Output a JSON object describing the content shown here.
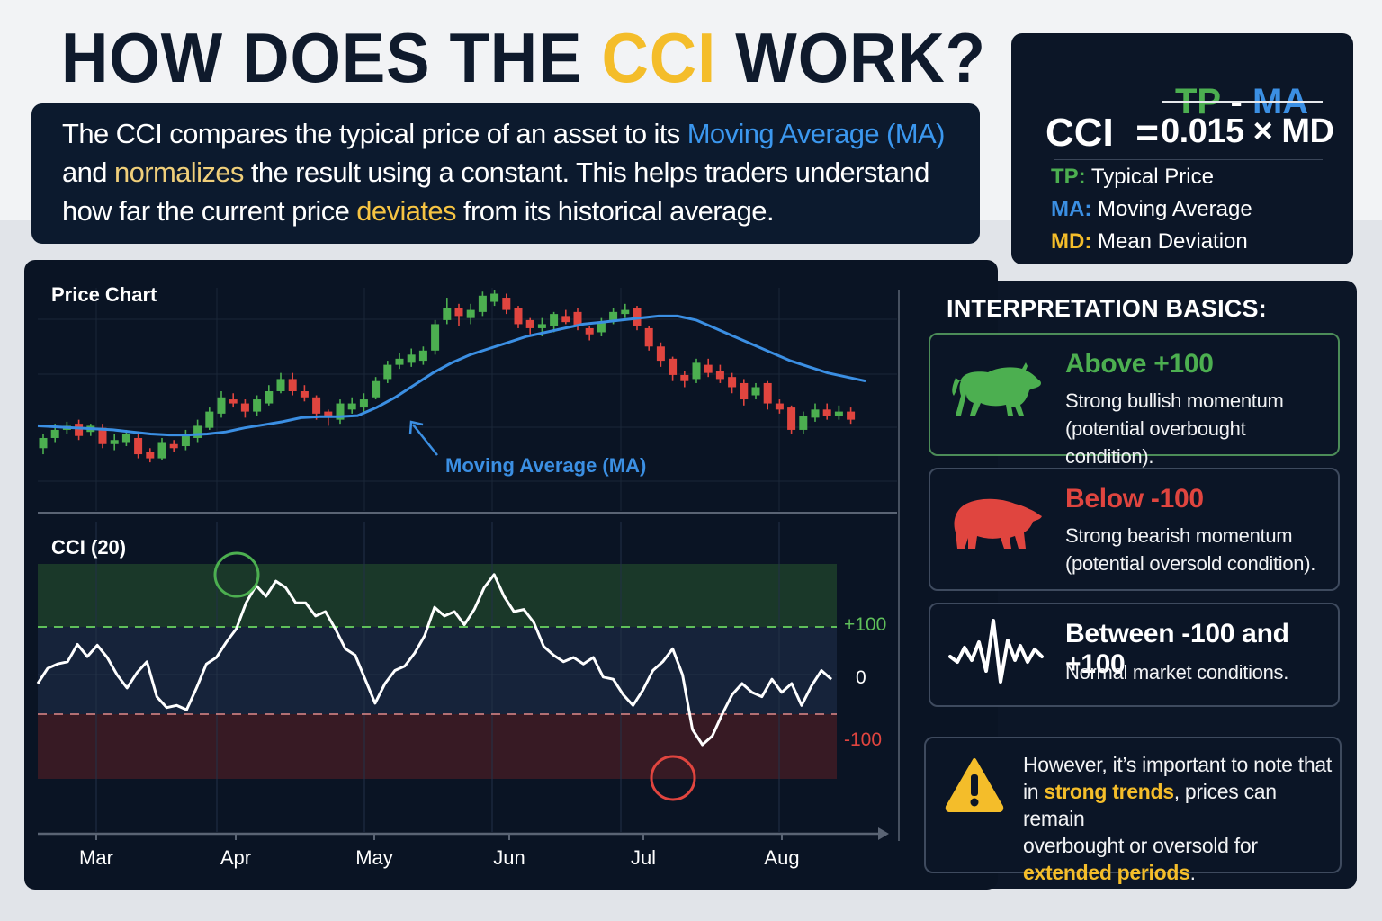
{
  "header": {
    "title_pre": "HOW DOES THE ",
    "title_accent": "CCI",
    "title_post": " WORK?"
  },
  "intro": {
    "line1_pre": "The CCI compares the typical price of an asset to its ",
    "line1_hl": "Moving Average (MA)",
    "line2_pre": "and ",
    "line2_hl": "normalizes",
    "line2_post": " the result using a constant. This helps traders understand",
    "line3_pre": "how far the current price ",
    "line3_hl": "deviates",
    "line3_post": " from its historical average."
  },
  "formula": {
    "lhs": "CCI  =",
    "num_tp": "TP",
    "num_minus": " - ",
    "num_ma": "MA",
    "denominator": "0.015 × MD",
    "legend": [
      {
        "key": "TP:",
        "label": " Typical Price",
        "color": "#4caf50"
      },
      {
        "key": "MA:",
        "label": " Moving Average",
        "color": "#3b8fe3"
      },
      {
        "key": "MD:",
        "label": " Mean Deviation",
        "color": "#f4bd2a"
      }
    ]
  },
  "interpretation": {
    "title": "INTERPRETATION BASICS:",
    "cards": [
      {
        "heading": "Above +100",
        "line1": "Strong bullish momentum",
        "line2": "(potential overbought condition).",
        "icon": "bull-icon"
      },
      {
        "heading": "Below -100",
        "line1": "Strong bearish momentum",
        "line2": "(potential oversold condition).",
        "icon": "bear-icon"
      },
      {
        "heading": "Between -100 and +100",
        "line1": "Normal market conditions.",
        "icon": "wave-icon"
      }
    ],
    "warning": {
      "l1": "However, it’s important to note that",
      "l2_pre": "in ",
      "l2_hl": "strong trends",
      "l2_post": ", prices can remain",
      "l3": "overbought or oversold for",
      "l4_hl": "extended periods",
      "l4_post": "."
    }
  },
  "colors": {
    "bull": "#4caf50",
    "bear": "#e0453f",
    "ma": "#3b8fe3",
    "accent": "#f4bd2a",
    "panel": "#0a1424"
  },
  "chart_data": [
    {
      "type": "candlestick",
      "title": "Price Chart",
      "xlabel": "",
      "ylabel": "",
      "x_tick_labels": [
        "Mar",
        "Apr",
        "May",
        "Jun",
        "Jul",
        "Aug"
      ],
      "grid": true,
      "note": "Values are relative price levels (0-100 scale) estimated from pixel positions; higher = higher price.",
      "candles": [
        {
          "o": 22,
          "c": 27,
          "h": 29,
          "l": 19
        },
        {
          "o": 27,
          "c": 31,
          "h": 34,
          "l": 25
        },
        {
          "o": 31,
          "c": 33,
          "h": 35,
          "l": 29
        },
        {
          "o": 34,
          "c": 28,
          "h": 36,
          "l": 26
        },
        {
          "o": 30,
          "c": 33,
          "h": 34,
          "l": 28
        },
        {
          "o": 32,
          "c": 24,
          "h": 34,
          "l": 22
        },
        {
          "o": 24,
          "c": 26,
          "h": 29,
          "l": 21
        },
        {
          "o": 25,
          "c": 29,
          "h": 31,
          "l": 23
        },
        {
          "o": 27,
          "c": 19,
          "h": 29,
          "l": 17
        },
        {
          "o": 20,
          "c": 17,
          "h": 22,
          "l": 15
        },
        {
          "o": 17,
          "c": 25,
          "h": 27,
          "l": 16
        },
        {
          "o": 24,
          "c": 22,
          "h": 26,
          "l": 20
        },
        {
          "o": 23,
          "c": 28,
          "h": 31,
          "l": 21
        },
        {
          "o": 27,
          "c": 33,
          "h": 36,
          "l": 25
        },
        {
          "o": 32,
          "c": 40,
          "h": 42,
          "l": 31
        },
        {
          "o": 39,
          "c": 47,
          "h": 50,
          "l": 37
        },
        {
          "o": 46,
          "c": 44,
          "h": 49,
          "l": 42
        },
        {
          "o": 44,
          "c": 40,
          "h": 46,
          "l": 37
        },
        {
          "o": 40,
          "c": 46,
          "h": 48,
          "l": 38
        },
        {
          "o": 44,
          "c": 50,
          "h": 53,
          "l": 43
        },
        {
          "o": 50,
          "c": 56,
          "h": 59,
          "l": 49
        },
        {
          "o": 56,
          "c": 50,
          "h": 59,
          "l": 48
        },
        {
          "o": 50,
          "c": 47,
          "h": 53,
          "l": 45
        },
        {
          "o": 47,
          "c": 39,
          "h": 48,
          "l": 36
        },
        {
          "o": 40,
          "c": 37,
          "h": 41,
          "l": 33
        },
        {
          "o": 36,
          "c": 44,
          "h": 46,
          "l": 34
        },
        {
          "o": 41,
          "c": 44,
          "h": 47,
          "l": 39
        },
        {
          "o": 42,
          "c": 46,
          "h": 49,
          "l": 40
        },
        {
          "o": 47,
          "c": 55,
          "h": 57,
          "l": 46
        },
        {
          "o": 56,
          "c": 63,
          "h": 65,
          "l": 54
        },
        {
          "o": 63,
          "c": 66,
          "h": 69,
          "l": 61
        },
        {
          "o": 64,
          "c": 68,
          "h": 71,
          "l": 62
        },
        {
          "o": 65,
          "c": 70,
          "h": 72,
          "l": 63
        },
        {
          "o": 70,
          "c": 83,
          "h": 85,
          "l": 68
        },
        {
          "o": 85,
          "c": 91,
          "h": 96,
          "l": 83
        },
        {
          "o": 91,
          "c": 87,
          "h": 93,
          "l": 82
        },
        {
          "o": 86,
          "c": 90,
          "h": 93,
          "l": 83
        },
        {
          "o": 89,
          "c": 97,
          "h": 99,
          "l": 87
        },
        {
          "o": 94,
          "c": 98,
          "h": 100,
          "l": 92
        },
        {
          "o": 96,
          "c": 90,
          "h": 98,
          "l": 88
        },
        {
          "o": 91,
          "c": 83,
          "h": 92,
          "l": 81
        },
        {
          "o": 85,
          "c": 81,
          "h": 86,
          "l": 78
        },
        {
          "o": 81,
          "c": 83,
          "h": 86,
          "l": 77
        },
        {
          "o": 82,
          "c": 88,
          "h": 89,
          "l": 79
        },
        {
          "o": 87,
          "c": 84,
          "h": 90,
          "l": 83
        },
        {
          "o": 89,
          "c": 82,
          "h": 91,
          "l": 80
        },
        {
          "o": 81,
          "c": 78,
          "h": 82,
          "l": 75
        },
        {
          "o": 79,
          "c": 84,
          "h": 86,
          "l": 77
        },
        {
          "o": 85,
          "c": 89,
          "h": 91,
          "l": 83
        },
        {
          "o": 88,
          "c": 90,
          "h": 93,
          "l": 86
        },
        {
          "o": 91,
          "c": 82,
          "h": 92,
          "l": 80
        },
        {
          "o": 81,
          "c": 72,
          "h": 82,
          "l": 70
        },
        {
          "o": 72,
          "c": 65,
          "h": 74,
          "l": 62
        },
        {
          "o": 66,
          "c": 58,
          "h": 67,
          "l": 55
        },
        {
          "o": 58,
          "c": 55,
          "h": 60,
          "l": 52
        },
        {
          "o": 56,
          "c": 64,
          "h": 66,
          "l": 54
        },
        {
          "o": 63,
          "c": 59,
          "h": 66,
          "l": 57
        },
        {
          "o": 60,
          "c": 56,
          "h": 63,
          "l": 54
        },
        {
          "o": 57,
          "c": 52,
          "h": 59,
          "l": 49
        },
        {
          "o": 54,
          "c": 46,
          "h": 56,
          "l": 43
        },
        {
          "o": 48,
          "c": 52,
          "h": 54,
          "l": 46
        },
        {
          "o": 54,
          "c": 44,
          "h": 55,
          "l": 41
        },
        {
          "o": 44,
          "c": 41,
          "h": 46,
          "l": 39
        },
        {
          "o": 42,
          "c": 31,
          "h": 43,
          "l": 29
        },
        {
          "o": 31,
          "c": 38,
          "h": 40,
          "l": 29
        },
        {
          "o": 37,
          "c": 41,
          "h": 44,
          "l": 35
        },
        {
          "o": 41,
          "c": 38,
          "h": 44,
          "l": 36
        },
        {
          "o": 38,
          "c": 40,
          "h": 43,
          "l": 36
        },
        {
          "o": 40,
          "c": 36,
          "h": 42,
          "l": 34
        }
      ],
      "moving_average": {
        "label": "Moving Average (MA)",
        "values": [
          33,
          32.5,
          32,
          31.5,
          31,
          30,
          29,
          28.5,
          28.5,
          29,
          30,
          32,
          33.5,
          35,
          37,
          37.5,
          37.5,
          38,
          42,
          47,
          53,
          59,
          64,
          68,
          71,
          74,
          77,
          79,
          81,
          83,
          84,
          85,
          86,
          87,
          87,
          85,
          81,
          77,
          73,
          69,
          65,
          62,
          59,
          57,
          55
        ]
      }
    },
    {
      "type": "line",
      "title": "CCI (20)",
      "ylabel": "",
      "y_tick_labels": [
        "+100",
        "0",
        "-100"
      ],
      "reference_lines": [
        100,
        -100
      ],
      "zones": {
        "overbought": "> +100",
        "oversold": "< -100"
      },
      "ylim": [
        -250,
        250
      ],
      "x_tick_labels": [
        "Mar",
        "Apr",
        "May",
        "Jun",
        "Jul",
        "Aug"
      ],
      "annotations": [
        {
          "type": "circle",
          "color": "green",
          "label": "overbought peak (~Apr)"
        },
        {
          "type": "circle",
          "color": "red",
          "label": "oversold trough (~Jul)"
        }
      ],
      "values": [
        -30,
        5,
        15,
        20,
        60,
        32,
        58,
        30,
        -10,
        -40,
        -5,
        20,
        -60,
        -85,
        -80,
        -90,
        -40,
        15,
        30,
        65,
        95,
        155,
        195,
        170,
        205,
        190,
        155,
        155,
        125,
        135,
        95,
        50,
        35,
        -20,
        -75,
        -30,
        0,
        10,
        40,
        80,
        145,
        125,
        135,
        105,
        140,
        190,
        220,
        170,
        135,
        140,
        110,
        55,
        35,
        20,
        30,
        15,
        30,
        -15,
        -20,
        -55,
        -80,
        -45,
        0,
        20,
        50,
        -10,
        -135,
        -170,
        -150,
        -100,
        -55,
        -30,
        -50,
        -60,
        -20,
        -50,
        -30,
        -80,
        -35,
        0,
        -20
      ]
    }
  ],
  "price_chart": {
    "title": "Price Chart",
    "ma_label": "Moving Average (MA)"
  },
  "cci_chart": {
    "title": "CCI (20)",
    "plus100": "+100",
    "zero": "0",
    "minus100": "-100"
  },
  "axis": {
    "months": [
      "Mar",
      "Apr",
      "May",
      "Jun",
      "Jul",
      "Aug"
    ]
  }
}
